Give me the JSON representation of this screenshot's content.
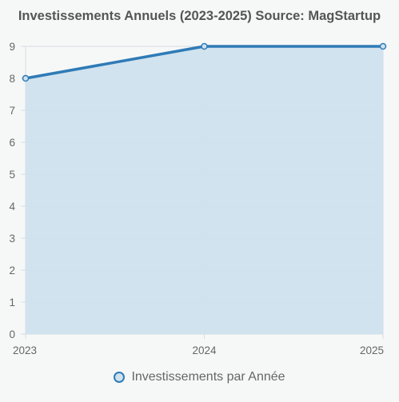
{
  "chart_data": {
    "type": "area",
    "title": "Investissements Annuels (2023-2025) Source: MagStartup",
    "categories": [
      "2023",
      "2024",
      "2025"
    ],
    "series": [
      {
        "name": "Investissements par Année",
        "values": [
          8,
          9,
          9
        ]
      }
    ],
    "xlabel": "",
    "ylabel": "",
    "ylim": [
      0,
      9
    ],
    "yticks": [
      0,
      1,
      2,
      3,
      4,
      5,
      6,
      7,
      8,
      9
    ],
    "grid": true,
    "legend_position": "bottom",
    "colors": {
      "line": "#2f7bb6",
      "fill": "#cfe1ee",
      "grid": "#d5dcdf",
      "axis_text": "#666666",
      "background": "#f6f8f8"
    }
  }
}
